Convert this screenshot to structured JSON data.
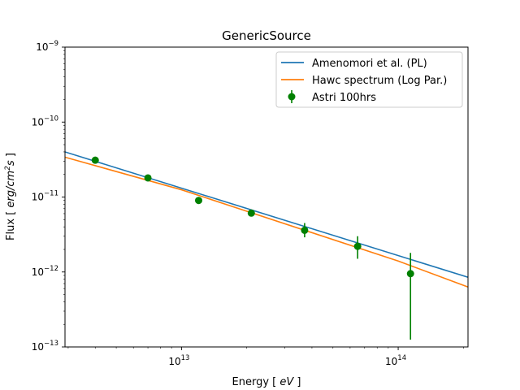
{
  "chart_data": {
    "type": "line",
    "title": "GenericSource",
    "xlabel": "Energy  [ eV ]",
    "ylabel": "Flux  [ erg/cm2s ]",
    "x_scale": "log",
    "y_scale": "log",
    "xlim": [
      2900000000000.0,
      210000000000000.0
    ],
    "ylim": [
      1e-13,
      1e-09
    ],
    "x_ticks": [
      {
        "value": 10000000000000.0,
        "label": "10",
        "exp": "13"
      },
      {
        "value": 100000000000000.0,
        "label": "10",
        "exp": "14"
      }
    ],
    "y_ticks": [
      {
        "value": 1e-13,
        "label": "10",
        "exp": "−13"
      },
      {
        "value": 1e-12,
        "label": "10",
        "exp": "−12"
      },
      {
        "value": 1e-11,
        "label": "10",
        "exp": "−11"
      },
      {
        "value": 1e-10,
        "label": "10",
        "exp": "−10"
      },
      {
        "value": 1e-09,
        "label": "10",
        "exp": "−9"
      }
    ],
    "grid": false,
    "legend_position": "top-right",
    "series": [
      {
        "name": "Amenomori et al. (PL)",
        "kind": "line",
        "color": "#1f77b4",
        "x": [
          2900000000000.0,
          210000000000000.0
        ],
        "y": [
          4e-11,
          8.5e-13
        ]
      },
      {
        "name": "Hawc spectrum (Log Par.)",
        "kind": "line",
        "color": "#ff7f0e",
        "x": [
          2900000000000.0,
          10000000000000.0,
          100000000000000.0,
          210000000000000.0
        ],
        "y": [
          3.4e-11,
          1.25e-11,
          1.4e-12,
          6.3e-13
        ]
      },
      {
        "name": "Astri 100hrs",
        "kind": "errorbar",
        "color": "#008000",
        "x": [
          4000000000000.0,
          7000000000000.0,
          12000000000000.0,
          21000000000000.0,
          37000000000000.0,
          65000000000000.0,
          114000000000000.0
        ],
        "y": [
          3.1e-11,
          1.8e-11,
          9e-12,
          6.1e-12,
          3.6e-12,
          2.2e-12,
          9.5e-13
        ],
        "y_low": [
          3e-11,
          1.75e-11,
          8.7e-12,
          5.9e-12,
          2.9e-12,
          1.5e-12,
          1.25e-13
        ],
        "y_high": [
          3.2e-11,
          1.85e-11,
          9.3e-12,
          6.3e-12,
          4.5e-12,
          3e-12,
          1.8e-12
        ]
      }
    ]
  }
}
